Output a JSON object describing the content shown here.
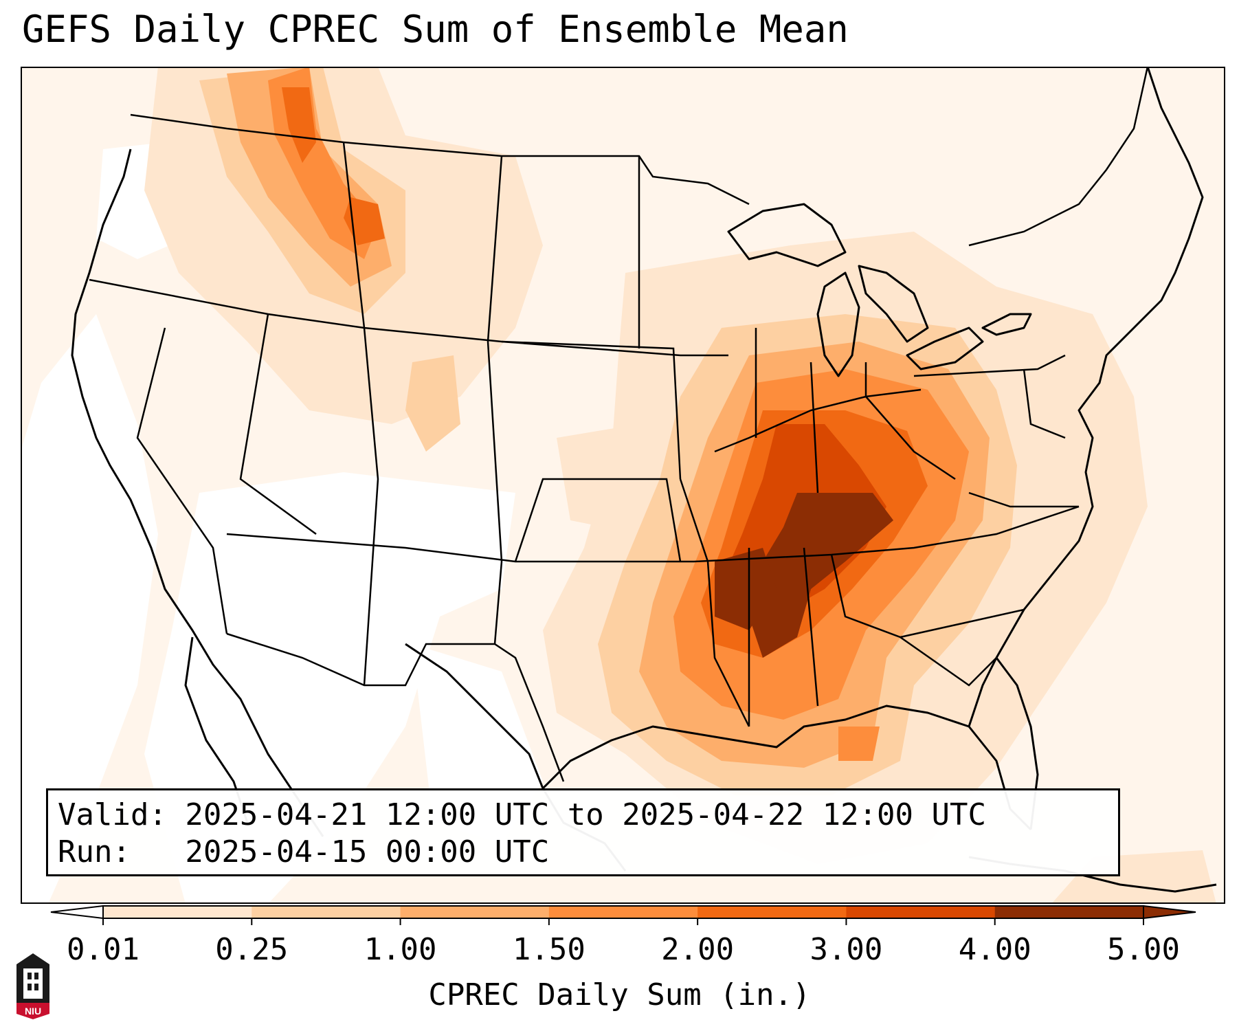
{
  "title": "GEFS Daily CPREC Sum of Ensemble Mean",
  "info": {
    "valid_line": "Valid: 2025-04-21 12:00 UTC to 2025-04-22 12:00 UTC",
    "run_line": "Run:   2025-04-15 00:00 UTC"
  },
  "colorbar": {
    "label": "CPREC Daily Sum (in.)",
    "ticks": [
      "0.01",
      "0.25",
      "1.00",
      "1.50",
      "2.00",
      "3.00",
      "4.00",
      "5.00"
    ],
    "colors": [
      "#fff5eb",
      "#fee6ce",
      "#fdd0a2",
      "#fdae6b",
      "#fd8d3c",
      "#f16913",
      "#d94801",
      "#8c2d04"
    ],
    "under_color": "#ffffff",
    "over_color": "#8c2d04"
  },
  "map": {
    "region": "Contiguous United States",
    "max_area": "Tennessee Valley / Lower Mississippi Valley",
    "secondary_max_area": "Northern Rockies"
  },
  "logo": {
    "text": "NIU"
  }
}
